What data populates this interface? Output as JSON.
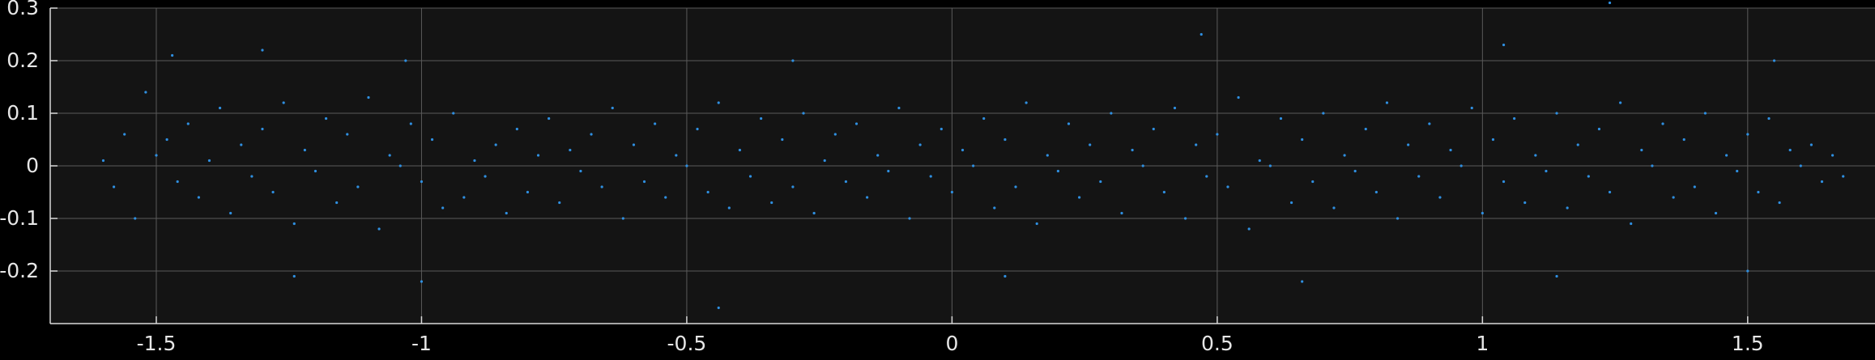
{
  "chart_data": {
    "type": "scatter",
    "title": "",
    "xlabel": "",
    "ylabel": "",
    "xlim": [
      -1.7,
      1.74
    ],
    "ylim": [
      -0.3,
      0.3
    ],
    "grid": true,
    "colors": {
      "figure_background": "#000000",
      "axes_background": "#141414",
      "grid": "#5a5a5a",
      "axis": "#d9d9d9",
      "tick_label": "#e6e6e6",
      "marker": "#2f8fe0"
    },
    "x_ticks": [
      {
        "value": -1.5,
        "label": "-1.5"
      },
      {
        "value": -1,
        "label": "-1"
      },
      {
        "value": -0.5,
        "label": "-0.5"
      },
      {
        "value": 0,
        "label": "0"
      },
      {
        "value": 0.5,
        "label": "0.5"
      },
      {
        "value": 1,
        "label": "1"
      },
      {
        "value": 1.5,
        "label": "1.5"
      }
    ],
    "y_ticks": [
      {
        "value": 0.3,
        "label": "0.3"
      },
      {
        "value": 0.2,
        "label": "0.2"
      },
      {
        "value": 0.1,
        "label": "0.1"
      },
      {
        "value": 0,
        "label": "0"
      },
      {
        "value": -0.1,
        "label": "-0.1"
      },
      {
        "value": -0.2,
        "label": "-0.2"
      }
    ],
    "series": [
      {
        "points": [
          [
            -1.5,
            0.02
          ],
          [
            -1.48,
            0.05
          ],
          [
            -1.46,
            -0.03
          ],
          [
            -1.44,
            0.08
          ],
          [
            -1.42,
            -0.06
          ],
          [
            -1.4,
            0.01
          ],
          [
            -1.38,
            0.11
          ],
          [
            -1.36,
            -0.09
          ],
          [
            -1.34,
            0.04
          ],
          [
            -1.32,
            -0.02
          ],
          [
            -1.3,
            0.07
          ],
          [
            -1.28,
            -0.05
          ],
          [
            -1.26,
            0.12
          ],
          [
            -1.24,
            -0.11
          ],
          [
            -1.22,
            0.03
          ],
          [
            -1.2,
            -0.01
          ],
          [
            -1.18,
            0.09
          ],
          [
            -1.16,
            -0.07
          ],
          [
            -1.14,
            0.06
          ],
          [
            -1.12,
            -0.04
          ],
          [
            -1.1,
            0.13
          ],
          [
            -1.08,
            -0.12
          ],
          [
            -1.06,
            0.02
          ],
          [
            -1.04,
            0.0
          ],
          [
            -1.02,
            0.08
          ],
          [
            -1.0,
            -0.03
          ],
          [
            -0.98,
            0.05
          ],
          [
            -0.96,
            -0.08
          ],
          [
            -0.94,
            0.1
          ],
          [
            -0.92,
            -0.06
          ],
          [
            -0.9,
            0.01
          ],
          [
            -0.88,
            -0.02
          ],
          [
            -1.6,
            0.01
          ],
          [
            -1.58,
            -0.04
          ],
          [
            -1.56,
            0.06
          ],
          [
            -1.54,
            -0.1
          ],
          [
            -1.52,
            0.14
          ],
          [
            -0.86,
            0.04
          ],
          [
            -0.84,
            -0.09
          ],
          [
            -0.82,
            0.07
          ],
          [
            -0.8,
            -0.05
          ],
          [
            -0.78,
            0.02
          ],
          [
            -0.76,
            0.09
          ],
          [
            -0.74,
            -0.07
          ],
          [
            -0.72,
            0.03
          ],
          [
            -0.7,
            -0.01
          ],
          [
            -0.68,
            0.06
          ],
          [
            -0.66,
            -0.04
          ],
          [
            -0.64,
            0.11
          ],
          [
            -0.62,
            -0.1
          ],
          [
            -0.6,
            0.04
          ],
          [
            -0.58,
            -0.03
          ],
          [
            -0.56,
            0.08
          ],
          [
            -0.54,
            -0.06
          ],
          [
            -0.52,
            0.02
          ],
          [
            -0.5,
            0.0
          ],
          [
            -0.48,
            0.07
          ],
          [
            -0.46,
            -0.05
          ],
          [
            -0.44,
            0.12
          ],
          [
            -0.42,
            -0.08
          ],
          [
            -0.4,
            0.03
          ],
          [
            -0.38,
            -0.02
          ],
          [
            -0.36,
            0.09
          ],
          [
            -0.34,
            -0.07
          ],
          [
            -0.32,
            0.05
          ],
          [
            -0.3,
            -0.04
          ],
          [
            -0.28,
            0.1
          ],
          [
            -0.26,
            -0.09
          ],
          [
            -0.24,
            0.01
          ],
          [
            -0.22,
            0.06
          ],
          [
            -0.2,
            -0.03
          ],
          [
            -0.18,
            0.08
          ],
          [
            -0.16,
            -0.06
          ],
          [
            -0.14,
            0.02
          ],
          [
            -0.12,
            -0.01
          ],
          [
            -0.1,
            0.11
          ],
          [
            -0.08,
            -0.1
          ],
          [
            -0.06,
            0.04
          ],
          [
            -0.04,
            -0.02
          ],
          [
            -0.02,
            0.07
          ],
          [
            0.0,
            -0.05
          ],
          [
            0.02,
            0.03
          ],
          [
            0.04,
            0.0
          ],
          [
            0.06,
            0.09
          ],
          [
            0.08,
            -0.08
          ],
          [
            0.1,
            0.05
          ],
          [
            0.12,
            -0.04
          ],
          [
            0.14,
            0.12
          ],
          [
            0.16,
            -0.11
          ],
          [
            0.18,
            0.02
          ],
          [
            0.2,
            -0.01
          ],
          [
            0.22,
            0.08
          ],
          [
            0.24,
            -0.06
          ],
          [
            0.26,
            0.04
          ],
          [
            0.28,
            -0.03
          ],
          [
            0.3,
            0.1
          ],
          [
            0.32,
            -0.09
          ],
          [
            0.34,
            0.03
          ],
          [
            0.36,
            0.0
          ],
          [
            0.38,
            0.07
          ],
          [
            0.4,
            -0.05
          ],
          [
            0.42,
            0.11
          ],
          [
            0.44,
            -0.1
          ],
          [
            0.46,
            0.04
          ],
          [
            0.48,
            -0.02
          ],
          [
            0.5,
            0.06
          ],
          [
            0.52,
            -0.04
          ],
          [
            0.54,
            0.13
          ],
          [
            0.56,
            -0.12
          ],
          [
            0.58,
            0.01
          ],
          [
            0.6,
            0.0
          ],
          [
            0.62,
            0.09
          ],
          [
            0.64,
            -0.07
          ],
          [
            0.66,
            0.05
          ],
          [
            0.68,
            -0.03
          ],
          [
            0.7,
            0.1
          ],
          [
            0.72,
            -0.08
          ],
          [
            0.74,
            0.02
          ],
          [
            0.76,
            -0.01
          ],
          [
            0.78,
            0.07
          ],
          [
            0.8,
            -0.05
          ],
          [
            0.82,
            0.12
          ],
          [
            0.84,
            -0.1
          ],
          [
            0.86,
            0.04
          ],
          [
            0.88,
            -0.02
          ],
          [
            0.9,
            0.08
          ],
          [
            0.92,
            -0.06
          ],
          [
            0.94,
            0.03
          ],
          [
            0.96,
            0.0
          ],
          [
            0.98,
            0.11
          ],
          [
            1.0,
            -0.09
          ],
          [
            1.02,
            0.05
          ],
          [
            1.04,
            -0.03
          ],
          [
            1.06,
            0.09
          ],
          [
            1.08,
            -0.07
          ],
          [
            1.1,
            0.02
          ],
          [
            1.12,
            -0.01
          ],
          [
            1.14,
            0.1
          ],
          [
            1.16,
            -0.08
          ],
          [
            1.18,
            0.04
          ],
          [
            1.2,
            -0.02
          ],
          [
            1.22,
            0.07
          ],
          [
            1.24,
            -0.05
          ],
          [
            1.26,
            0.12
          ],
          [
            1.28,
            -0.11
          ],
          [
            1.3,
            0.03
          ],
          [
            1.32,
            0.0
          ],
          [
            1.34,
            0.08
          ],
          [
            1.36,
            -0.06
          ],
          [
            1.38,
            0.05
          ],
          [
            1.4,
            -0.04
          ],
          [
            1.42,
            0.1
          ],
          [
            1.44,
            -0.09
          ],
          [
            1.46,
            0.02
          ],
          [
            1.48,
            -0.01
          ],
          [
            1.5,
            0.06
          ],
          [
            1.52,
            -0.05
          ],
          [
            1.54,
            0.09
          ],
          [
            1.56,
            -0.07
          ],
          [
            1.58,
            0.03
          ],
          [
            1.6,
            0.0
          ],
          [
            1.62,
            0.04
          ],
          [
            1.64,
            -0.03
          ],
          [
            1.66,
            0.02
          ],
          [
            1.68,
            -0.02
          ],
          [
            -1.47,
            0.21
          ],
          [
            -1.3,
            0.22
          ],
          [
            -1.03,
            0.2
          ],
          [
            -0.3,
            0.2
          ],
          [
            0.47,
            0.25
          ],
          [
            1.04,
            0.23
          ],
          [
            1.24,
            0.31
          ],
          [
            1.55,
            0.2
          ],
          [
            -1.24,
            -0.21
          ],
          [
            -1.0,
            -0.22
          ],
          [
            -0.44,
            -0.27
          ],
          [
            0.1,
            -0.21
          ],
          [
            0.66,
            -0.22
          ],
          [
            1.14,
            -0.21
          ],
          [
            1.5,
            -0.2
          ]
        ]
      }
    ]
  }
}
